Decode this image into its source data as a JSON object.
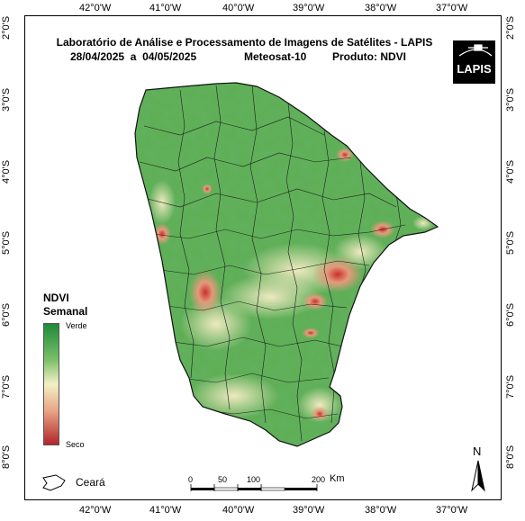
{
  "header": {
    "title": "Laboratório de Análise e Processamento de Imagens de Satélites - LAPIS",
    "period": "28/04/2025  a  04/05/2025",
    "satellite": "Meteosat-10",
    "product": "Produto: NDVI",
    "logo_text": "LAPIS"
  },
  "axes": {
    "lon_labels": [
      "42°0'W",
      "41°0'W",
      "40°0'W",
      "39°0'W",
      "38°0'W",
      "37°0'W"
    ],
    "lat_labels": [
      "2°0'S",
      "3°0'S",
      "4°0'S",
      "5°0'S",
      "6°0'S",
      "7°0'S",
      "8°0'S"
    ]
  },
  "legend": {
    "title_line1": "NDVI",
    "title_line2": "Semanal",
    "top_label": "Verde",
    "bottom_label": "Seco",
    "colors": [
      "#1f8a3a",
      "#7cc06a",
      "#f3f0c6",
      "#e8a585",
      "#b3242c"
    ]
  },
  "scale_bar": {
    "ticks": [
      "0",
      "50",
      "100",
      "200"
    ],
    "unit": "Km"
  },
  "region_legend": {
    "label": "Ceará"
  },
  "north_arrow": {
    "label": "N"
  }
}
